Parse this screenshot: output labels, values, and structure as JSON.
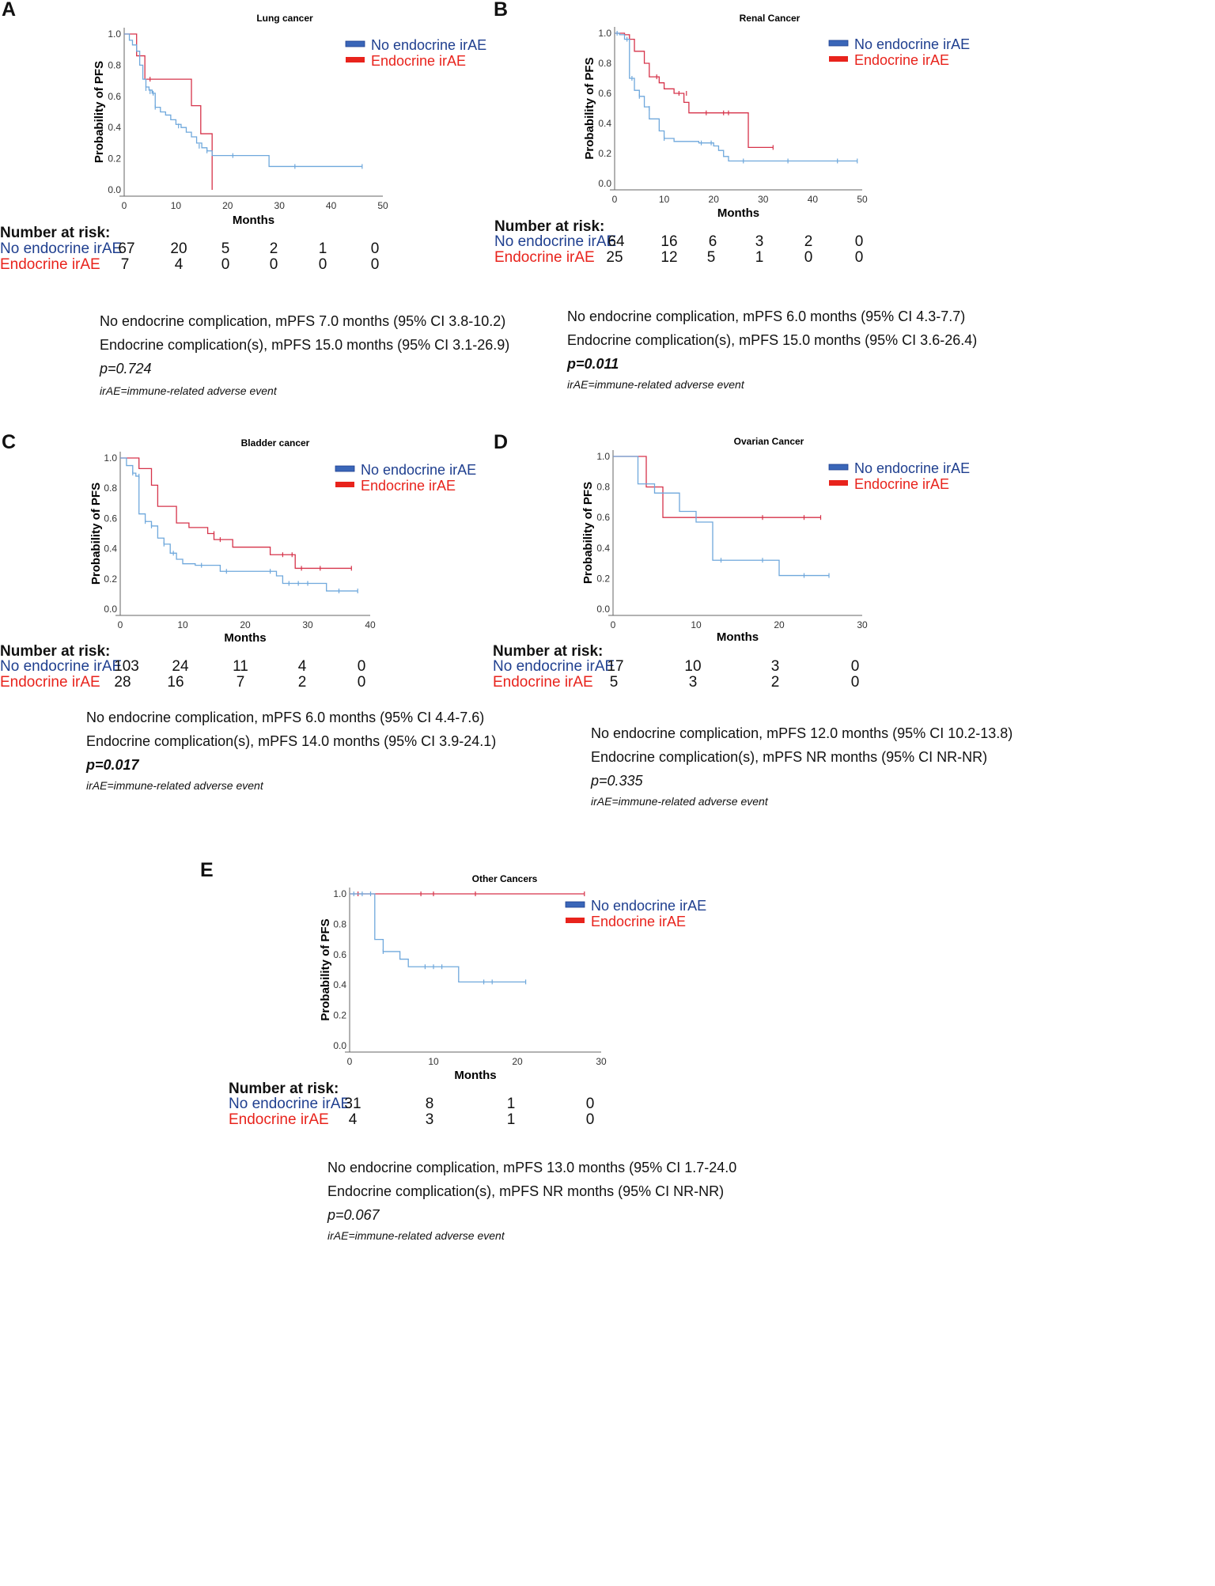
{
  "colors": {
    "no_endocrine": "#6fa8dc",
    "endocrine": "#d6334a",
    "legend_no": "#3a66b8",
    "legend_endo": "#e8231c",
    "axis": "#666666"
  },
  "common": {
    "ylabel": "Probability of PFS",
    "xlabel": "Months",
    "legend_no": "No endocrine irAE",
    "legend_endo": "Endocrine irAE",
    "risk_header": "Number at risk:",
    "footnote": "irAE=immune-related adverse event"
  },
  "panels": [
    {
      "letter": "A",
      "risk": {
        "times": [
          "0",
          "10",
          "20",
          "30",
          "40",
          "50"
        ],
        "no": [
          "67",
          "20",
          "5",
          "2",
          "1",
          "0"
        ],
        "endo": [
          "7",
          "4",
          "0",
          "0",
          "0",
          "0"
        ]
      },
      "stats": {
        "line_no": "No endocrine complication, mPFS 7.0 months (95% CI 3.8-10.2)",
        "line_endo": "Endocrine complication(s), mPFS 15.0 months (95% CI 3.1-26.9)",
        "p": "p=0.724"
      }
    },
    {
      "letter": "B",
      "risk": {
        "times": [
          "0",
          "10",
          "20",
          "30",
          "40",
          "50"
        ],
        "no": [
          "64",
          "16",
          "6",
          "3",
          "2",
          "0"
        ],
        "endo": [
          "25",
          "12",
          "5",
          "1",
          "0",
          "0"
        ]
      },
      "stats": {
        "line_no": "No endocrine complication, mPFS 6.0 months (95% CI 4.3-7.7)",
        "line_endo": "Endocrine complication(s), mPFS 15.0 months (95% CI 3.6-26.4)",
        "p": "p=0.011"
      }
    },
    {
      "letter": "C",
      "risk": {
        "times": [
          "0",
          "10",
          "20",
          "30",
          "40"
        ],
        "no": [
          "103",
          "24",
          "11",
          "4",
          "0"
        ],
        "endo": [
          "28",
          "16",
          "7",
          "2",
          "0"
        ]
      },
      "stats": {
        "line_no": "No endocrine complication, mPFS 6.0 months (95% CI 4.4-7.6)",
        "line_endo": "Endocrine complication(s), mPFS 14.0 months (95% CI 3.9-24.1)",
        "p": "p=0.017"
      }
    },
    {
      "letter": "D",
      "risk": {
        "times": [
          "0",
          "10",
          "20",
          "30"
        ],
        "no": [
          "17",
          "10",
          "3",
          "0"
        ],
        "endo": [
          "5",
          "3",
          "2",
          "0"
        ]
      },
      "stats": {
        "line_no": "No endocrine complication, mPFS 12.0 months (95% CI 10.2-13.8)",
        "line_endo": "Endocrine complication(s), mPFS NR months (95% CI NR-NR)",
        "p": "p=0.335"
      }
    },
    {
      "letter": "E",
      "risk": {
        "times": [
          "0",
          "10",
          "20",
          "30"
        ],
        "no": [
          "31",
          "8",
          "1",
          "0"
        ],
        "endo": [
          "4",
          "3",
          "1",
          "0"
        ]
      },
      "stats": {
        "line_no": "No endocrine complication, mPFS 13.0 months (95% CI 1.7-24.0",
        "line_endo": "Endocrine complication(s), mPFS NR months (95% CI NR-NR)",
        "p": "p=0.067"
      }
    }
  ],
  "chart_data": [
    {
      "type": "line",
      "title": "Lung cancer",
      "xlabel": "Months",
      "ylabel": "Probability of PFS",
      "xlim": [
        0,
        50
      ],
      "ylim": [
        0,
        1
      ],
      "xticks": [
        0,
        10,
        20,
        30,
        40,
        50
      ],
      "yticks": [
        "0.0",
        "0.2",
        "0.4",
        "0.6",
        "0.8",
        "1.0"
      ],
      "series": [
        {
          "name": "No endocrine irAE",
          "steps": [
            [
              0,
              1.0
            ],
            [
              1,
              0.96
            ],
            [
              1.6,
              0.93
            ],
            [
              2.4,
              0.89
            ],
            [
              3,
              0.8
            ],
            [
              3.6,
              0.71
            ],
            [
              4.2,
              0.66
            ],
            [
              4.8,
              0.64
            ],
            [
              5.4,
              0.62
            ],
            [
              6,
              0.53
            ],
            [
              7,
              0.5
            ],
            [
              8,
              0.48
            ],
            [
              9,
              0.45
            ],
            [
              10,
              0.42
            ],
            [
              11,
              0.4
            ],
            [
              12,
              0.37
            ],
            [
              13,
              0.34
            ],
            [
              14,
              0.3
            ],
            [
              15,
              0.27
            ],
            [
              16,
              0.25
            ],
            [
              17,
              0.22
            ],
            [
              28,
              0.15
            ],
            [
              46,
              0.15
            ]
          ],
          "censors": [
            [
              4.2,
              0.65
            ],
            [
              5,
              0.63
            ],
            [
              5.6,
              0.62
            ],
            [
              6,
              0.53
            ],
            [
              10.5,
              0.41
            ],
            [
              14.5,
              0.28
            ],
            [
              16,
              0.25
            ],
            [
              21,
              0.22
            ],
            [
              33,
              0.15
            ],
            [
              46,
              0.15
            ]
          ]
        },
        {
          "name": "Endocrine irAE",
          "steps": [
            [
              0,
              1.0
            ],
            [
              2.4,
              0.86
            ],
            [
              4,
              0.71
            ],
            [
              13,
              0.54
            ],
            [
              14.8,
              0.36
            ],
            [
              17,
              0.0
            ],
            [
              17,
              0.0
            ]
          ],
          "censors": [
            [
              5,
              0.71
            ]
          ]
        }
      ]
    },
    {
      "type": "line",
      "title": "Renal Cancer",
      "xlabel": "Months",
      "ylabel": "Probability of PFS",
      "xlim": [
        0,
        50
      ],
      "ylim": [
        0,
        1
      ],
      "xticks": [
        0,
        10,
        20,
        30,
        40,
        50
      ],
      "yticks": [
        "0.0",
        "0.2",
        "0.4",
        "0.6",
        "0.8",
        "1.0"
      ],
      "series": [
        {
          "name": "No endocrine irAE",
          "steps": [
            [
              0,
              1.0
            ],
            [
              1,
              0.99
            ],
            [
              2,
              0.96
            ],
            [
              3,
              0.7
            ],
            [
              4,
              0.62
            ],
            [
              5,
              0.58
            ],
            [
              6,
              0.51
            ],
            [
              7,
              0.43
            ],
            [
              9,
              0.35
            ],
            [
              10,
              0.3
            ],
            [
              12,
              0.28
            ],
            [
              17,
              0.27
            ],
            [
              20,
              0.25
            ],
            [
              21,
              0.22
            ],
            [
              22,
              0.18
            ],
            [
              23,
              0.15
            ],
            [
              49,
              0.15
            ]
          ],
          "censors": [
            [
              0.5,
              1.0
            ],
            [
              2.5,
              0.96
            ],
            [
              3.5,
              0.7
            ],
            [
              5,
              0.58
            ],
            [
              7,
              0.5
            ],
            [
              10,
              0.3
            ],
            [
              17.5,
              0.27
            ],
            [
              19.5,
              0.27
            ],
            [
              26,
              0.15
            ],
            [
              35,
              0.15
            ],
            [
              45,
              0.15
            ],
            [
              49,
              0.15
            ]
          ]
        },
        {
          "name": "Endocrine irAE",
          "steps": [
            [
              0,
              1.0
            ],
            [
              2,
              0.99
            ],
            [
              3,
              0.96
            ],
            [
              4,
              0.88
            ],
            [
              6,
              0.8
            ],
            [
              7,
              0.71
            ],
            [
              9,
              0.67
            ],
            [
              10,
              0.63
            ],
            [
              12,
              0.6
            ],
            [
              14,
              0.54
            ],
            [
              15,
              0.47
            ],
            [
              22,
              0.47
            ],
            [
              27,
              0.24
            ],
            [
              32,
              0.24
            ]
          ],
          "censors": [
            [
              8.5,
              0.71
            ],
            [
              13,
              0.6
            ],
            [
              14.5,
              0.6
            ],
            [
              18.5,
              0.47
            ],
            [
              22,
              0.47
            ],
            [
              23,
              0.47
            ],
            [
              32,
              0.24
            ]
          ]
        }
      ]
    },
    {
      "type": "line",
      "title": "Bladder cancer",
      "xlabel": "Months",
      "ylabel": "Probability of PFS",
      "xlim": [
        0,
        40
      ],
      "ylim": [
        0,
        1
      ],
      "xticks": [
        0,
        10,
        20,
        30,
        40
      ],
      "yticks": [
        "0.0",
        "0.2",
        "0.4",
        "0.6",
        "0.8",
        "1.0"
      ],
      "series": [
        {
          "name": "No endocrine irAE",
          "steps": [
            [
              0,
              1.0
            ],
            [
              1,
              0.95
            ],
            [
              2,
              0.9
            ],
            [
              2.5,
              0.88
            ],
            [
              3,
              0.63
            ],
            [
              4,
              0.58
            ],
            [
              5,
              0.55
            ],
            [
              6,
              0.47
            ],
            [
              7,
              0.43
            ],
            [
              8,
              0.37
            ],
            [
              9,
              0.33
            ],
            [
              10,
              0.3
            ],
            [
              12,
              0.29
            ],
            [
              16,
              0.25
            ],
            [
              25,
              0.22
            ],
            [
              26,
              0.17
            ],
            [
              33,
              0.12
            ],
            [
              38,
              0.12
            ]
          ],
          "censors": [
            [
              2,
              0.9
            ],
            [
              3,
              0.88
            ],
            [
              4,
              0.58
            ],
            [
              5,
              0.55
            ],
            [
              7,
              0.43
            ],
            [
              8.5,
              0.37
            ],
            [
              13,
              0.29
            ],
            [
              17,
              0.25
            ],
            [
              24,
              0.25
            ],
            [
              27,
              0.17
            ],
            [
              28.5,
              0.17
            ],
            [
              30,
              0.17
            ],
            [
              35,
              0.12
            ],
            [
              38,
              0.12
            ]
          ]
        },
        {
          "name": "Endocrine irAE",
          "steps": [
            [
              0,
              1.0
            ],
            [
              3,
              0.93
            ],
            [
              5,
              0.82
            ],
            [
              6,
              0.68
            ],
            [
              9,
              0.57
            ],
            [
              11,
              0.54
            ],
            [
              14,
              0.5
            ],
            [
              15,
              0.46
            ],
            [
              18,
              0.41
            ],
            [
              24,
              0.36
            ],
            [
              28,
              0.27
            ],
            [
              37,
              0.27
            ]
          ],
          "censors": [
            [
              15,
              0.5
            ],
            [
              16,
              0.46
            ],
            [
              26,
              0.36
            ],
            [
              27.5,
              0.36
            ],
            [
              29,
              0.27
            ],
            [
              32,
              0.27
            ],
            [
              37,
              0.27
            ]
          ]
        }
      ]
    },
    {
      "type": "line",
      "title": "Ovarian Cancer",
      "xlabel": "Months",
      "ylabel": "Probability of PFS",
      "xlim": [
        0,
        30
      ],
      "ylim": [
        0,
        1
      ],
      "xticks": [
        0,
        10,
        20,
        30
      ],
      "yticks": [
        "0.0",
        "0.2",
        "0.4",
        "0.6",
        "0.8",
        "1.0"
      ],
      "series": [
        {
          "name": "No endocrine irAE",
          "steps": [
            [
              0,
              1.0
            ],
            [
              3,
              0.82
            ],
            [
              5,
              0.76
            ],
            [
              8,
              0.64
            ],
            [
              10,
              0.57
            ],
            [
              12,
              0.32
            ],
            [
              20,
              0.22
            ],
            [
              26,
              0.22
            ]
          ],
          "censors": [
            [
              13,
              0.32
            ],
            [
              18,
              0.32
            ],
            [
              23,
              0.22
            ],
            [
              26,
              0.22
            ]
          ]
        },
        {
          "name": "Endocrine irAE",
          "steps": [
            [
              0,
              1.0
            ],
            [
              4,
              0.8
            ],
            [
              6,
              0.6
            ],
            [
              25,
              0.6
            ]
          ],
          "censors": [
            [
              18,
              0.6
            ],
            [
              23,
              0.6
            ],
            [
              25,
              0.6
            ]
          ]
        }
      ]
    },
    {
      "type": "line",
      "title": "Other Cancers",
      "xlabel": "Months",
      "ylabel": "Probability of PFS",
      "xlim": [
        0,
        30
      ],
      "ylim": [
        0,
        1
      ],
      "xticks": [
        0,
        10,
        20,
        30
      ],
      "yticks": [
        "0.0",
        "0.2",
        "0.4",
        "0.6",
        "0.8",
        "1.0"
      ],
      "series": [
        {
          "name": "No endocrine irAE",
          "steps": [
            [
              0,
              1.0
            ],
            [
              3,
              0.7
            ],
            [
              4,
              0.62
            ],
            [
              6,
              0.57
            ],
            [
              7,
              0.52
            ],
            [
              13,
              0.42
            ],
            [
              21,
              0.42
            ]
          ],
          "censors": [
            [
              0.5,
              1.0
            ],
            [
              1.5,
              1.0
            ],
            [
              2.5,
              1.0
            ],
            [
              4,
              0.62
            ],
            [
              9,
              0.52
            ],
            [
              10,
              0.52
            ],
            [
              11,
              0.52
            ],
            [
              16,
              0.42
            ],
            [
              17,
              0.42
            ],
            [
              21,
              0.42
            ]
          ]
        },
        {
          "name": "Endocrine irAE",
          "steps": [
            [
              0,
              1.0
            ],
            [
              28,
              1.0
            ]
          ],
          "censors": [
            [
              1,
              1.0
            ],
            [
              8.5,
              1.0
            ],
            [
              10,
              1.0
            ],
            [
              15,
              1.0
            ],
            [
              28,
              1.0
            ]
          ]
        }
      ]
    }
  ]
}
